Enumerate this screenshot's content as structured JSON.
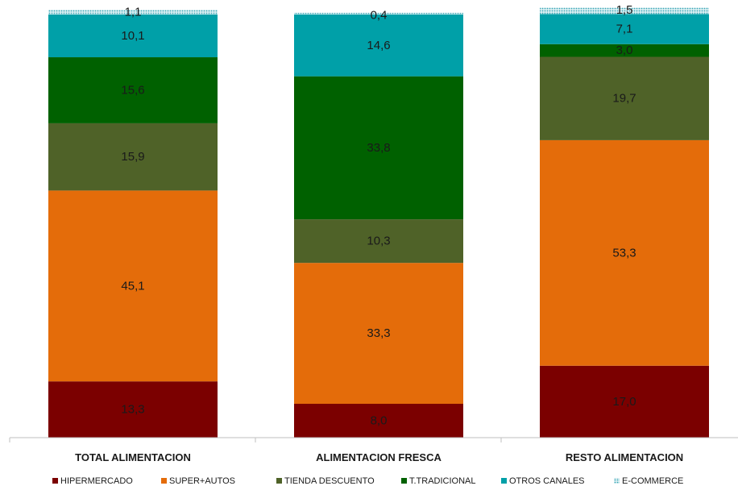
{
  "chart_data": {
    "type": "bar",
    "stacked": true,
    "categories": [
      "TOTAL ALIMENTACION",
      "ALIMENTACION FRESCA",
      "RESTO ALIMENTACION"
    ],
    "series": [
      {
        "name": "HIPERMERCADO",
        "color": "#7b0000",
        "values": [
          13.3,
          8.0,
          17.0
        ],
        "labels": [
          "13,3",
          "8,0",
          "17,0"
        ]
      },
      {
        "name": "SUPER+AUTOS",
        "color": "#e46c0a",
        "values": [
          45.1,
          33.3,
          53.3
        ],
        "labels": [
          "45,1",
          "33,3",
          "53,3"
        ]
      },
      {
        "name": "TIENDA DESCUENTO",
        "color": "#4f6228",
        "values": [
          15.9,
          10.3,
          19.7
        ],
        "labels": [
          "15,9",
          "10,3",
          "19,7"
        ]
      },
      {
        "name": "T.TRADICIONAL",
        "color": "#006100",
        "values": [
          15.6,
          33.8,
          3.0
        ],
        "labels": [
          "15,6",
          "33,8",
          "3,0"
        ]
      },
      {
        "name": "OTROS CANALES",
        "color": "#00a0a8",
        "values": [
          10.1,
          14.6,
          7.1
        ],
        "labels": [
          "10,1",
          "14,6",
          "7,1"
        ]
      },
      {
        "name": "E-COMMERCE",
        "color": "#a9d8e0",
        "pattern": "dotted",
        "values": [
          1.1,
          0.4,
          1.5
        ],
        "labels": [
          "1,1",
          "0,4",
          "1,5"
        ]
      }
    ],
    "ylim": [
      0,
      100
    ],
    "legend": "bottom",
    "grid": false
  }
}
